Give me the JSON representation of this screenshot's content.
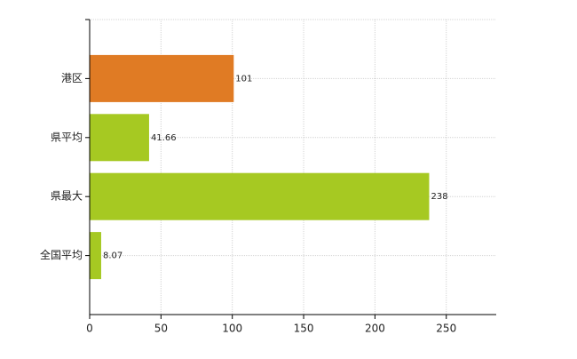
{
  "chart_data": {
    "type": "hbar",
    "categories": [
      "港区",
      "県平均",
      "県最大",
      "全国平均"
    ],
    "values": [
      101,
      41.66,
      238,
      8.07
    ],
    "colors": [
      "#e07b24",
      "#a6c922",
      "#a6c922",
      "#a6c922"
    ],
    "xlim": [
      0,
      285
    ],
    "xticks": [
      0,
      50,
      100,
      150,
      200,
      250
    ],
    "grid": true
  }
}
